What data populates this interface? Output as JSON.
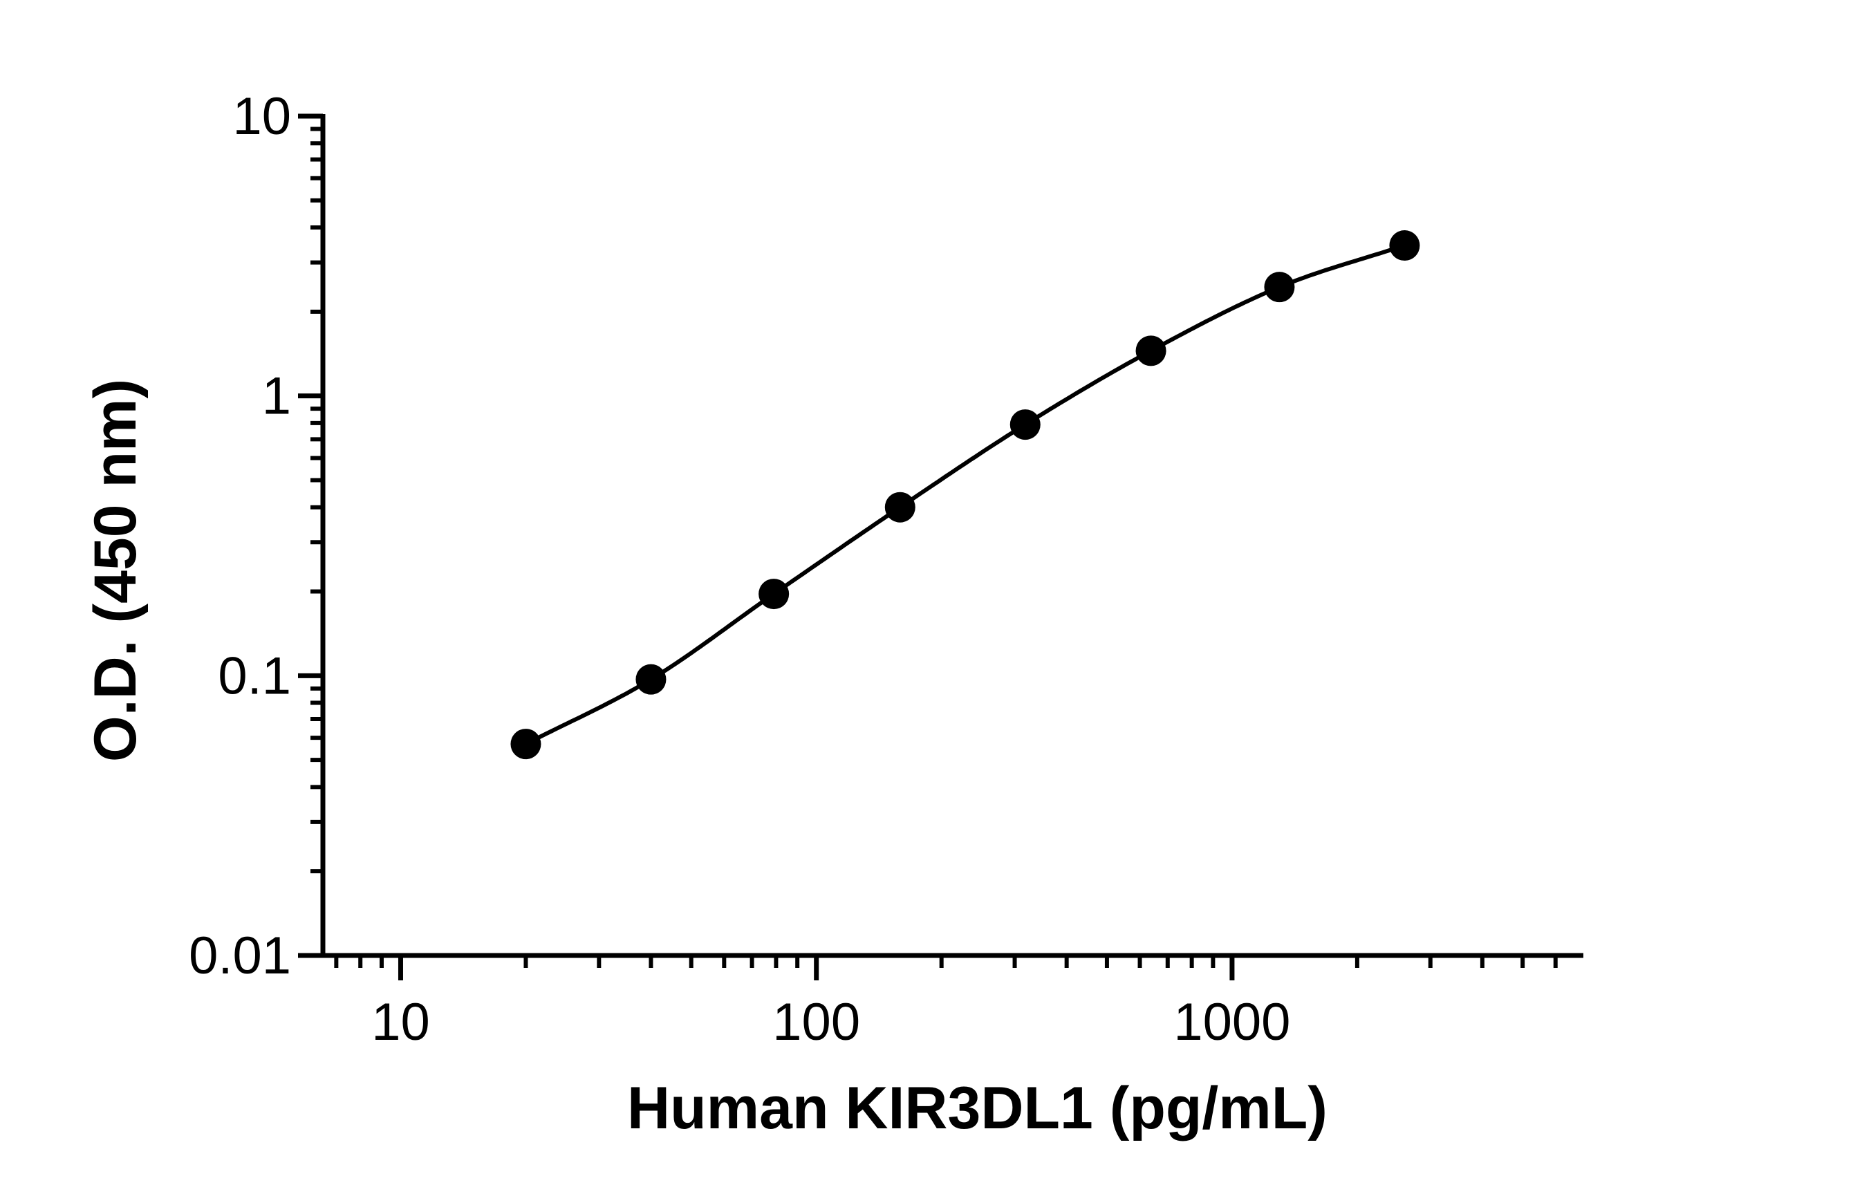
{
  "chart_data": {
    "type": "scatter",
    "title": "",
    "xlabel": "Human KIR3DL1 (pg/mL)",
    "ylabel": "O.D. (450 nm)",
    "x_scale": "log",
    "y_scale": "log",
    "xlim": [
      6.5,
      7000
    ],
    "ylim": [
      0.01,
      10
    ],
    "x_ticks": [
      {
        "value": 10,
        "label": "10"
      },
      {
        "value": 100,
        "label": "100"
      },
      {
        "value": 1000,
        "label": "1000"
      }
    ],
    "y_ticks": [
      {
        "value": 0.01,
        "label": "0.01"
      },
      {
        "value": 0.1,
        "label": "0.1"
      },
      {
        "value": 1,
        "label": "1"
      },
      {
        "value": 10,
        "label": "10"
      }
    ],
    "grid": false,
    "legend": "none",
    "series": [
      {
        "x": [
          20,
          40,
          79,
          159,
          318,
          638,
          1300,
          2600
        ],
        "y": [
          0.057,
          0.097,
          0.196,
          0.4,
          0.79,
          1.45,
          2.45,
          3.45
        ],
        "marker": "circle",
        "line": "fitted-curve",
        "color": "#000000"
      }
    ]
  }
}
